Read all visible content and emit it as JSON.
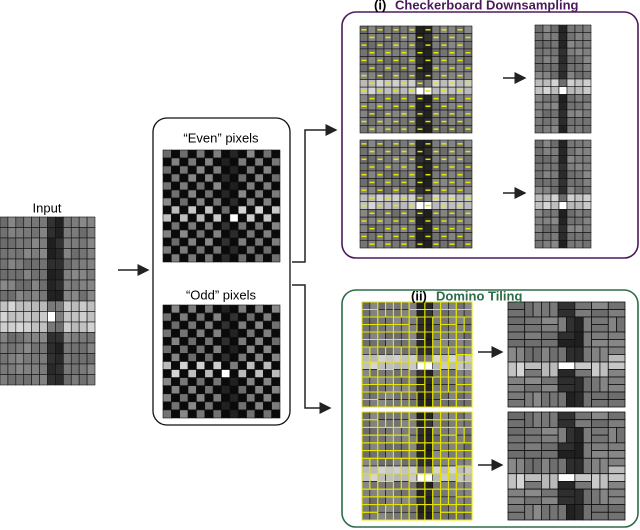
{
  "input": {
    "label": "Input"
  },
  "split": {
    "even_label": "“Even” pixels",
    "odd_label": "“Odd” pixels"
  },
  "checkerboard": {
    "number": "(i)",
    "title": "Checkerboard Downsampling"
  },
  "domino": {
    "number": "(ii)",
    "title": "Domino Tiling"
  }
}
